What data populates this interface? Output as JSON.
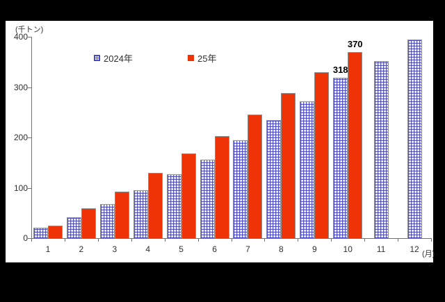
{
  "chart_data": {
    "type": "bar",
    "title": "",
    "y_unit": "(千トン)",
    "x_unit": "(月)",
    "categories": [
      "1",
      "2",
      "3",
      "4",
      "5",
      "6",
      "7",
      "8",
      "9",
      "10",
      "11",
      "12"
    ],
    "yticks": [
      0,
      100,
      200,
      300,
      400
    ],
    "ylim": [
      0,
      400
    ],
    "grid": false,
    "legend_position": "top",
    "series": [
      {
        "name": "2024年",
        "style": "blue-grid-hatch",
        "color": "#4444cc",
        "values": [
          21,
          42,
          68,
          95,
          127,
          156,
          194,
          235,
          272,
          318,
          352,
          395
        ]
      },
      {
        "name": "25年",
        "style": "solid",
        "color": "#ee3407",
        "values": [
          25,
          60,
          92,
          130,
          168,
          203,
          246,
          288,
          330,
          370,
          null,
          null
        ]
      }
    ],
    "annotations": [
      {
        "text": "318",
        "series": 0,
        "month_index": 9
      },
      {
        "text": "370",
        "series": 1,
        "month_index": 9
      }
    ]
  },
  "colors": {
    "frame": "#000000",
    "panel": "#ffffff",
    "axis": "#707070",
    "tick_label": "#303030",
    "annotation": "#000000"
  }
}
